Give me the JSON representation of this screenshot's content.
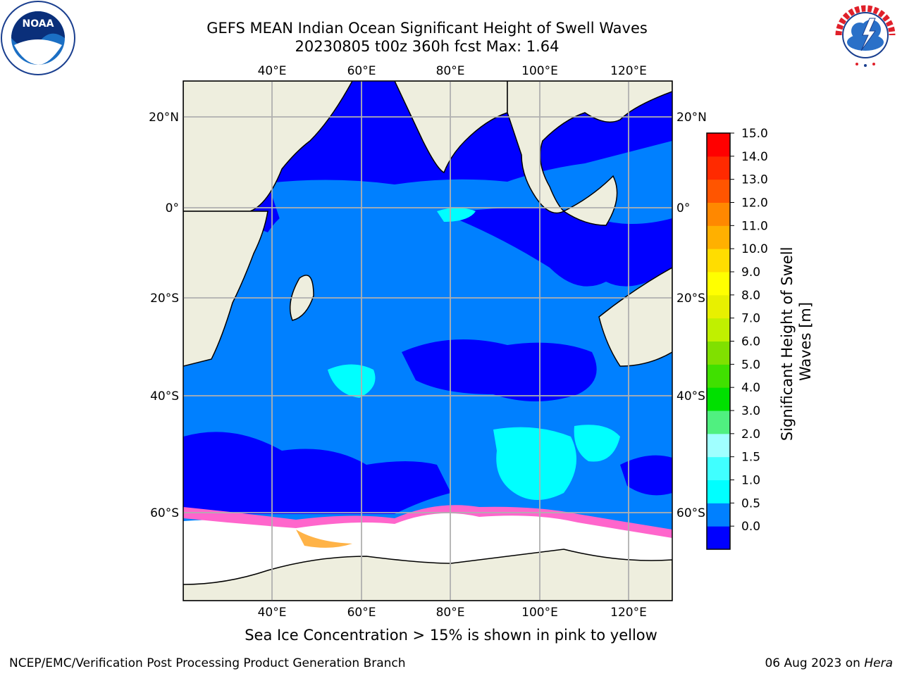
{
  "title": {
    "line1": "GEFS MEAN Indian Ocean Significant Height of Swell Waves",
    "line2": "20230805 t00z 360h fcst   Max: 1.64"
  },
  "logos": {
    "left": "NOAA",
    "right": "NATIONAL WEATHER SERVICE"
  },
  "map": {
    "lon_ticks": [
      "40°E",
      "60°E",
      "80°E",
      "100°E",
      "120°E"
    ],
    "lat_ticks": [
      "20°N",
      "0°",
      "20°S",
      "40°S",
      "60°S"
    ],
    "colors": {
      "ocean_low": "#0000ff",
      "ocean_mid": "#0080ff",
      "ocean_high": "#00ffff",
      "land": "#eeeede",
      "ice": "#ffffff",
      "grid": "#b0b0b0"
    }
  },
  "colorbar": {
    "label": "Significant Height of Swell Waves [m]",
    "ticks": [
      "15.0",
      "14.0",
      "13.0",
      "12.0",
      "11.0",
      "10.0",
      "9.0",
      "8.0",
      "7.0",
      "6.0",
      "5.0",
      "4.0",
      "3.0",
      "2.0",
      "1.5",
      "1.0",
      "0.5",
      "0.0"
    ],
    "colors": [
      "#0000ff",
      "#0080ff",
      "#00ffff",
      "#40ffff",
      "#a0ffff",
      "#50f080",
      "#00e000",
      "#40e000",
      "#80e000",
      "#c0f000",
      "#e8f000",
      "#ffff00",
      "#ffdd00",
      "#ffb000",
      "#ff8800",
      "#ff5500",
      "#ff2a00",
      "#ff0000"
    ]
  },
  "caption": "Sea Ice Concentration > 15% is shown in pink to yellow",
  "footer": {
    "left": "NCEP/EMC/Verification Post Processing Product Generation Branch",
    "right_prefix": "06 Aug 2023 on ",
    "right_host": "Hera"
  }
}
